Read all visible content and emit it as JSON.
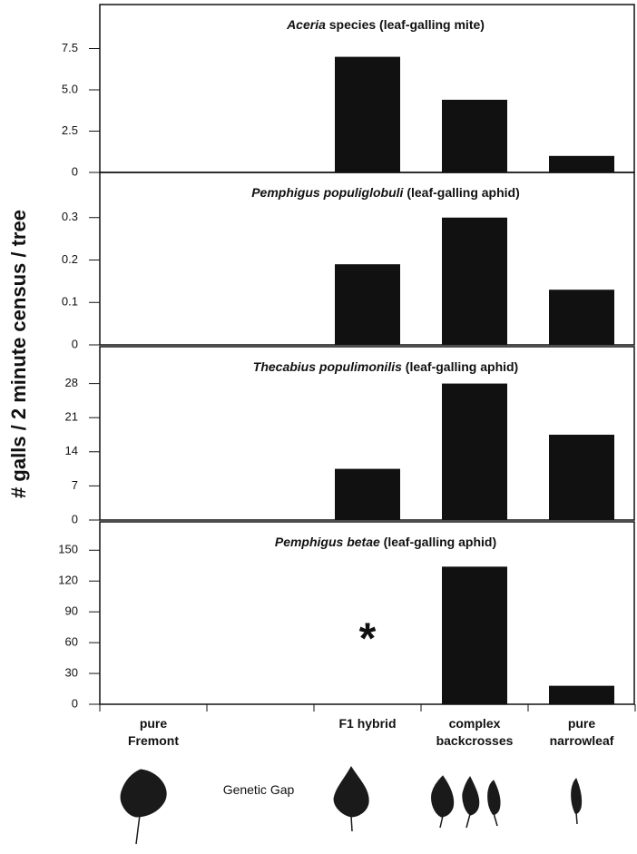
{
  "y_label": "# galls / 2 minute census / tree",
  "genetic_gap": "Genetic Gap",
  "chart_data": [
    {
      "type": "bar",
      "title": [
        "Aceria",
        " species (leaf-galling mite)"
      ],
      "color": "#111111",
      "values": [
        null,
        null,
        7.0,
        4.4,
        1.0
      ],
      "ylim": [
        0,
        10
      ],
      "yticks": [
        0,
        2.5,
        {
          "value": 5,
          "label": "5.0"
        },
        7.5
      ]
    },
    {
      "type": "bar",
      "title": [
        "Pemphigus populiglobuli",
        " (leaf-galling aphid)"
      ],
      "color": "#111111",
      "values": [
        null,
        null,
        0.19,
        0.3,
        0.13
      ],
      "ylim": [
        0,
        0.4
      ],
      "yticks": [
        0,
        0.1,
        0.2,
        0.3
      ]
    },
    {
      "type": "bar",
      "title": [
        "Thecabius populimonilis",
        " (leaf-galling aphid)"
      ],
      "color": "#111111",
      "values": [
        null,
        null,
        10.5,
        28,
        17.5
      ],
      "ylim": [
        0,
        35
      ],
      "yticks": [
        0,
        7,
        14,
        21,
        28
      ]
    },
    {
      "type": "bar",
      "title": [
        "Pemphigus betae",
        " (leaf-galling aphid)"
      ],
      "color": "#111111",
      "categories": [
        "pure Fremont",
        null,
        "F1 hybrid",
        "complex backcrosses",
        "pure narrowleaf"
      ],
      "values": [
        null,
        null,
        null,
        134,
        18
      ],
      "annotations": [
        {
          "text": "*",
          "category": 2
        }
      ],
      "ylim": [
        0,
        175
      ],
      "yticks": [
        0,
        30,
        60,
        90,
        120,
        150
      ]
    }
  ]
}
